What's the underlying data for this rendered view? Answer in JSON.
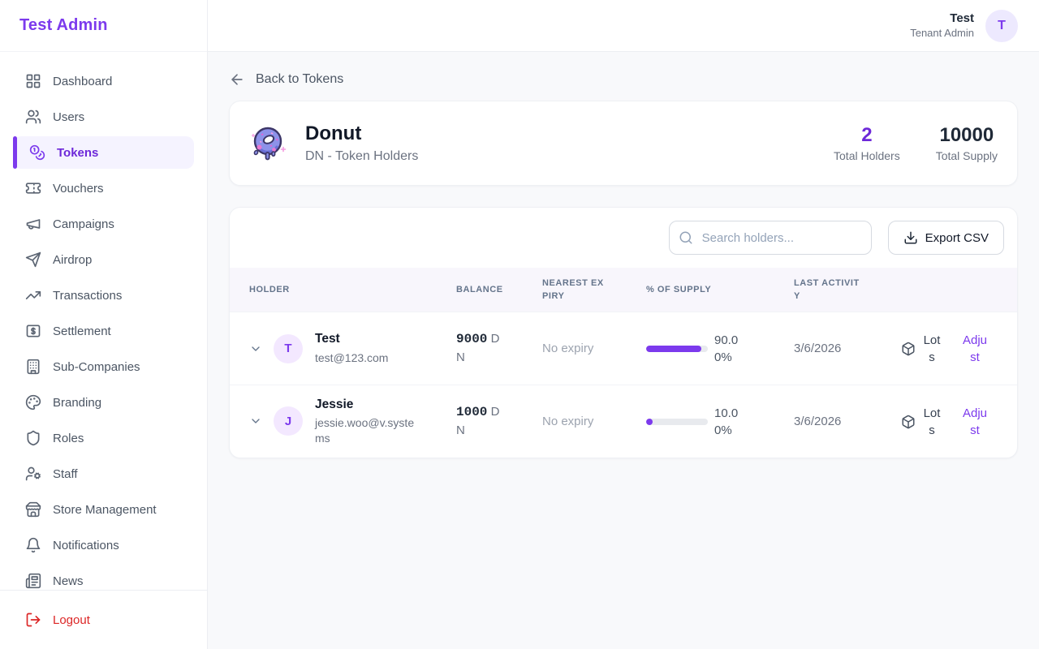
{
  "app": {
    "name": "Test Admin"
  },
  "header": {
    "user_name": "Test",
    "user_role": "Tenant Admin",
    "avatar_initial": "T"
  },
  "sidebar": {
    "items": [
      {
        "label": "Dashboard"
      },
      {
        "label": "Users"
      },
      {
        "label": "Tokens",
        "active": true
      },
      {
        "label": "Vouchers"
      },
      {
        "label": "Campaigns"
      },
      {
        "label": "Airdrop"
      },
      {
        "label": "Transactions"
      },
      {
        "label": "Settlement"
      },
      {
        "label": "Sub-Companies"
      },
      {
        "label": "Branding"
      },
      {
        "label": "Roles"
      },
      {
        "label": "Staff"
      },
      {
        "label": "Store Management"
      },
      {
        "label": "Notifications"
      },
      {
        "label": "News"
      }
    ],
    "logout_label": "Logout"
  },
  "page": {
    "back_link": "Back to Tokens",
    "token": {
      "name": "Donut",
      "subtitle": "DN - Token Holders",
      "stats": [
        {
          "value": "2",
          "label": "Total Holders"
        },
        {
          "value": "10000",
          "label": "Total Supply"
        }
      ]
    },
    "toolbar": {
      "search_placeholder": "Search holders...",
      "export_label": "Export CSV"
    },
    "table": {
      "columns": {
        "holder": "Holder",
        "balance": "Balance",
        "expiry": "Nearest Expiry",
        "supply": "% of Supply",
        "activity": "Last Activity"
      },
      "rows": [
        {
          "initial": "T",
          "name": "Test",
          "email": "test@123.com",
          "balance": "9000",
          "symbol": " DN",
          "expiry": "No expiry",
          "supply_pct": 90,
          "supply_text": "90.00%",
          "last_activity": "3/6/2026",
          "lots": "Lots",
          "adjust": "Adjust"
        },
        {
          "initial": "J",
          "name": "Jessie",
          "email": "jessie.woo@v.systems",
          "balance": "1000",
          "symbol": " DN",
          "expiry": "No expiry",
          "supply_pct": 10,
          "supply_text": "10.00%",
          "last_activity": "3/6/2026",
          "lots": "Lots",
          "adjust": "Adjust"
        }
      ]
    }
  },
  "colors": {
    "accent": "#7c3aed",
    "accent_dark": "#6d28d9",
    "active_item_bg": "#f5f3ff",
    "avatar_bg": "#ede9fe",
    "logout_red": "#dc2626",
    "table_header_bg": "#f8f6fc",
    "progress_track": "#e8eaee",
    "page_bg": "#f8f9fb"
  }
}
